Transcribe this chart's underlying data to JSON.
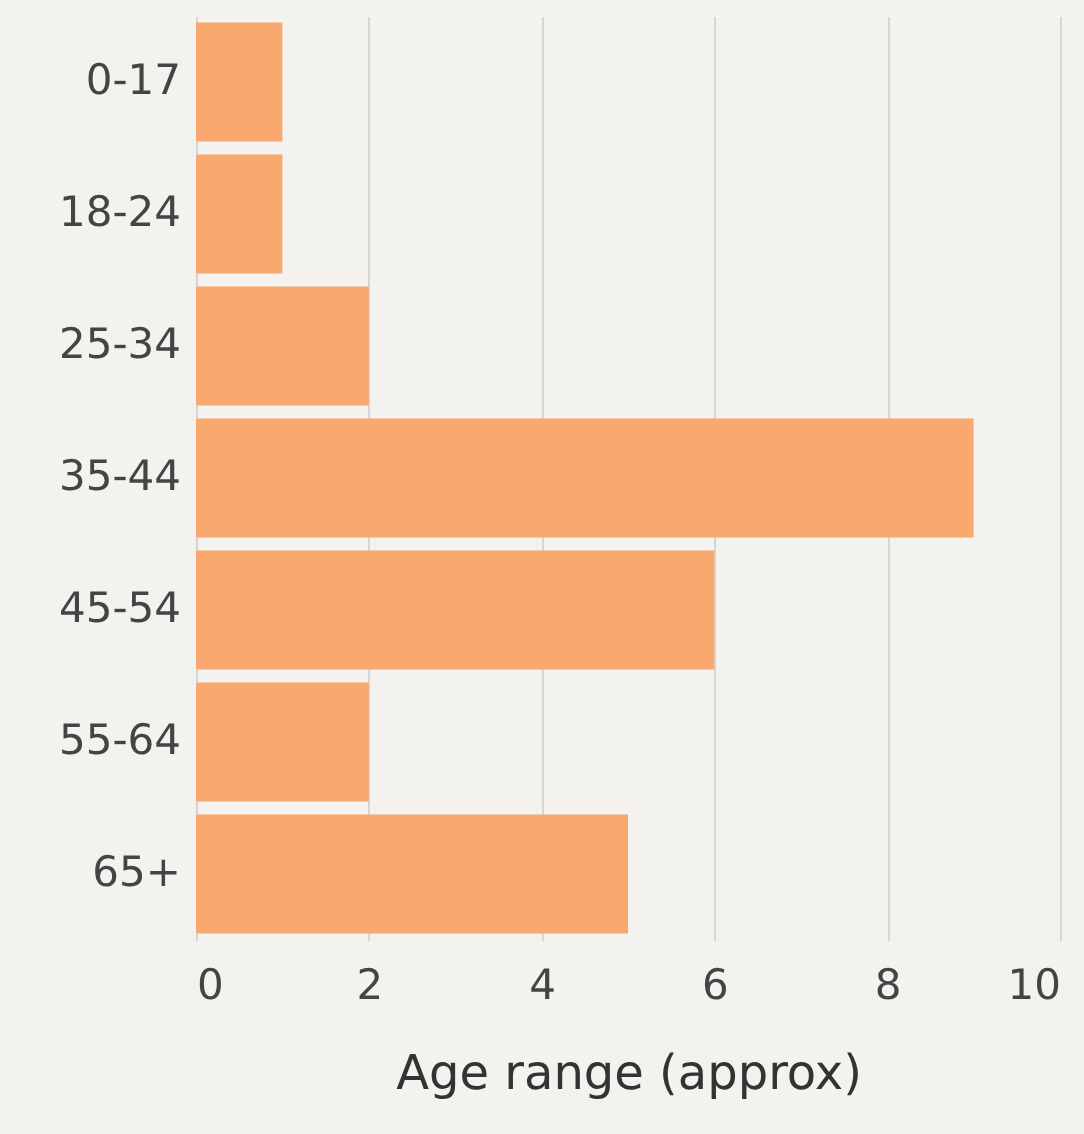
{
  "chart_data": {
    "type": "bar",
    "orientation": "horizontal",
    "xlabel": "Age range (approx)",
    "categories": [
      "0-17",
      "18-24",
      "25-34",
      "35-44",
      "45-54",
      "55-64",
      "65+"
    ],
    "values": [
      1,
      1,
      2,
      9,
      6,
      2,
      5
    ],
    "color": "#f9a86f",
    "xlim": [
      0,
      10
    ],
    "xticks": [
      0,
      2,
      4,
      6,
      8,
      10
    ],
    "grid": "x"
  }
}
